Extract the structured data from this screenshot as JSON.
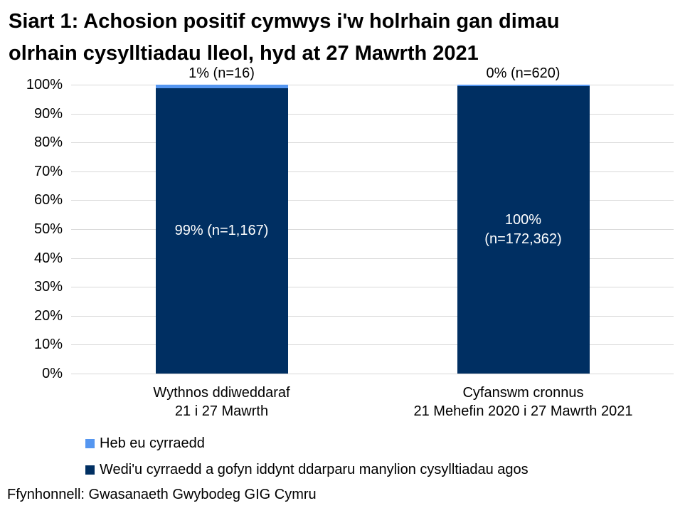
{
  "title": {
    "lines": [
      "Siart 1: Achosion positif cymwys i'w holrhain gan dimau",
      "olrhain cysylltiadau lleol, hyd at 27 Mawrth 2021"
    ]
  },
  "source": "Ffynhonnell: Gwasanaeth Gwybodeg GIG Cymru",
  "colors": {
    "dark_blue": "#002F62",
    "light_blue": "#5596F0",
    "gridline": "#D9D9D9",
    "text": "#000000",
    "bar_label_text": "#FFFFFF"
  },
  "chart_data": {
    "type": "bar",
    "stacked": true,
    "percent_axis": true,
    "title": "Siart 1: Achosion positif cymwys i'w holrhain gan dimau olrhain cysylltiadau lleol, hyd at 27 Mawrth 2021",
    "categories": [
      {
        "label_lines": [
          "Wythnos ddiweddaraf",
          "21 i 27 Mawrth"
        ]
      },
      {
        "label_lines": [
          "Cyfanswm cronnus",
          "21 Mehefin 2020 i 27 Mawrth 2021"
        ]
      }
    ],
    "series": [
      {
        "name": "Wedi'u cyrraedd a gofyn iddynt ddarparu manylion cysylltiadau agos",
        "color_key": "dark_blue",
        "counts": [
          1167,
          172362
        ],
        "percents": [
          99,
          100
        ],
        "bar_labels": [
          "99% (n=1,167)",
          "100%\n(n=172,362)"
        ],
        "label_position": "inside"
      },
      {
        "name": "Heb eu cyrraedd",
        "color_key": "light_blue",
        "counts": [
          16,
          620
        ],
        "percents": [
          1,
          0
        ],
        "bar_labels": [
          "1% (n=16)",
          "0% (n=620)"
        ],
        "label_position": "above"
      }
    ],
    "y_ticks": [
      "0%",
      "10%",
      "20%",
      "30%",
      "40%",
      "50%",
      "60%",
      "70%",
      "80%",
      "90%",
      "100%"
    ],
    "ylim": [
      0,
      100
    ],
    "grid": true,
    "legend": {
      "position": "bottom-left",
      "order": [
        1,
        0
      ]
    }
  }
}
